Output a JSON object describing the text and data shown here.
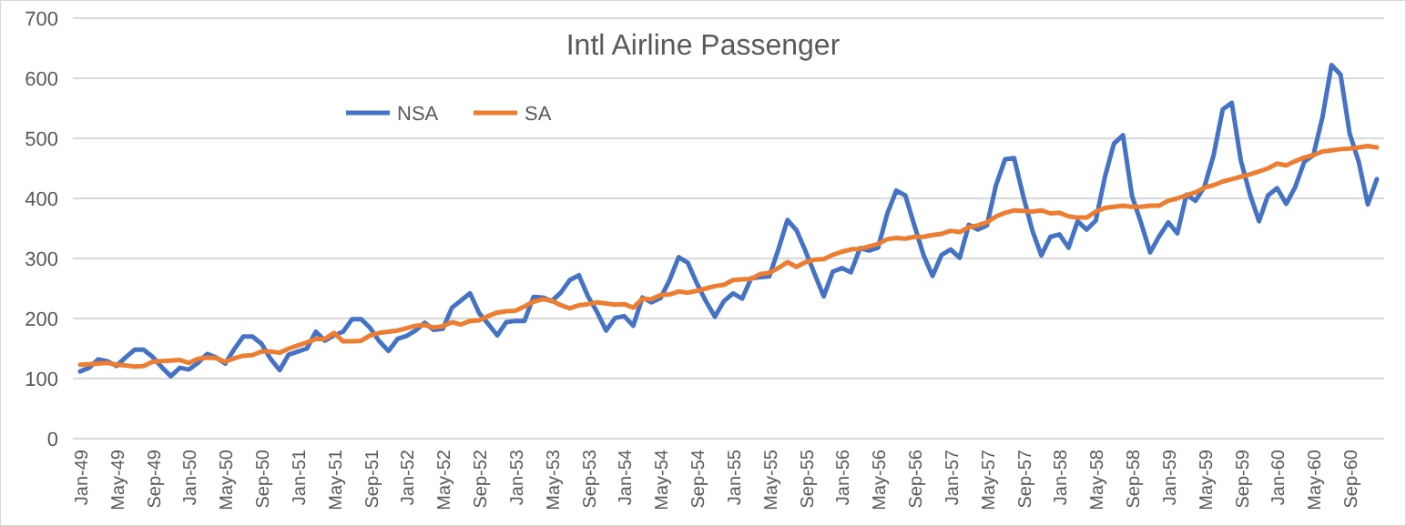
{
  "chart_data": {
    "type": "line",
    "title": "Intl Airline Passenger",
    "categories": [
      "Jan-49",
      null,
      null,
      null,
      "May-49",
      null,
      null,
      null,
      "Sep-49",
      null,
      null,
      null,
      "Jan-50",
      null,
      null,
      null,
      "May-50",
      null,
      null,
      null,
      "Sep-50",
      null,
      null,
      null,
      "Jan-51",
      null,
      null,
      null,
      "May-51",
      null,
      null,
      null,
      "Sep-51",
      null,
      null,
      null,
      "Jan-52",
      null,
      null,
      null,
      "May-52",
      null,
      null,
      null,
      "Sep-52",
      null,
      null,
      null,
      "Jan-53",
      null,
      null,
      null,
      "May-53",
      null,
      null,
      null,
      "Sep-53",
      null,
      null,
      null,
      "Jan-54",
      null,
      null,
      null,
      "May-54",
      null,
      null,
      null,
      "Sep-54",
      null,
      null,
      null,
      "Jan-55",
      null,
      null,
      null,
      "May-55",
      null,
      null,
      null,
      "Sep-55",
      null,
      null,
      null,
      "Jan-56",
      null,
      null,
      null,
      "May-56",
      null,
      null,
      null,
      "Sep-56",
      null,
      null,
      null,
      "Jan-57",
      null,
      null,
      null,
      "May-57",
      null,
      null,
      null,
      "Sep-57",
      null,
      null,
      null,
      "Jan-58",
      null,
      null,
      null,
      "May-58",
      null,
      null,
      null,
      "Sep-58",
      null,
      null,
      null,
      "Jan-59",
      null,
      null,
      null,
      "May-59",
      null,
      null,
      null,
      "Sep-59",
      null,
      null,
      null,
      "Jan-60",
      null,
      null,
      null,
      "May-60",
      null,
      null,
      null,
      "Sep-60",
      null,
      null,
      null
    ],
    "series": [
      {
        "name": "NSA",
        "color": "#4472c4",
        "values": [
          112,
          118,
          132,
          129,
          121,
          135,
          148,
          148,
          136,
          119,
          104,
          118,
          115,
          126,
          141,
          135,
          125,
          149,
          170,
          170,
          158,
          133,
          114,
          140,
          145,
          150,
          178,
          163,
          172,
          178,
          199,
          199,
          184,
          162,
          146,
          166,
          171,
          180,
          193,
          181,
          183,
          218,
          230,
          242,
          209,
          191,
          172,
          194,
          196,
          196,
          236,
          235,
          229,
          243,
          264,
          272,
          237,
          211,
          180,
          201,
          204,
          188,
          235,
          227,
          234,
          264,
          302,
          293,
          259,
          229,
          203,
          229,
          242,
          233,
          267,
          269,
          270,
          315,
          364,
          347,
          312,
          274,
          237,
          278,
          284,
          277,
          317,
          313,
          318,
          374,
          413,
          405,
          355,
          306,
          271,
          306,
          315,
          301,
          356,
          348,
          355,
          422,
          465,
          467,
          404,
          347,
          305,
          336,
          340,
          318,
          362,
          348,
          363,
          435,
          491,
          505,
          404,
          359,
          310,
          337,
          360,
          342,
          406,
          396,
          420,
          472,
          548,
          559,
          463,
          407,
          362,
          405,
          417,
          391,
          419,
          461,
          472,
          535,
          622,
          606,
          508,
          461,
          390,
          432
        ]
      },
      {
        "name": "SA",
        "color": "#ed7d31",
        "values": [
          123,
          124,
          125,
          126,
          123,
          122,
          120,
          121,
          128,
          129,
          130,
          131,
          126,
          133,
          135,
          134,
          128,
          134,
          138,
          139,
          145,
          145,
          143,
          150,
          155,
          160,
          166,
          166,
          176,
          162,
          162,
          163,
          172,
          176,
          178,
          180,
          184,
          188,
          189,
          185,
          187,
          194,
          190,
          196,
          197,
          204,
          210,
          212,
          213,
          220,
          228,
          232,
          230,
          222,
          217,
          222,
          224,
          227,
          225,
          223,
          224,
          218,
          233,
          232,
          239,
          240,
          245,
          243,
          246,
          250,
          254,
          256,
          264,
          265,
          266,
          274,
          276,
          284,
          294,
          286,
          294,
          298,
          299,
          306,
          311,
          315,
          316,
          320,
          324,
          332,
          334,
          333,
          336,
          336,
          339,
          341,
          346,
          344,
          352,
          355,
          360,
          370,
          376,
          380,
          379,
          378,
          380,
          375,
          376,
          370,
          368,
          368,
          378,
          384,
          386,
          388,
          386,
          386,
          388,
          388,
          396,
          400,
          405,
          410,
          418,
          422,
          428,
          432,
          436,
          440,
          445,
          450,
          458,
          455,
          462,
          468,
          472,
          478,
          480,
          482,
          483,
          485,
          487,
          485
        ]
      }
    ],
    "ylim": [
      0,
      700
    ],
    "yticks": [
      0,
      100,
      200,
      300,
      400,
      500,
      600,
      700
    ],
    "grid": "y",
    "legend": "top left",
    "line_style": "solid",
    "marker": "none"
  }
}
